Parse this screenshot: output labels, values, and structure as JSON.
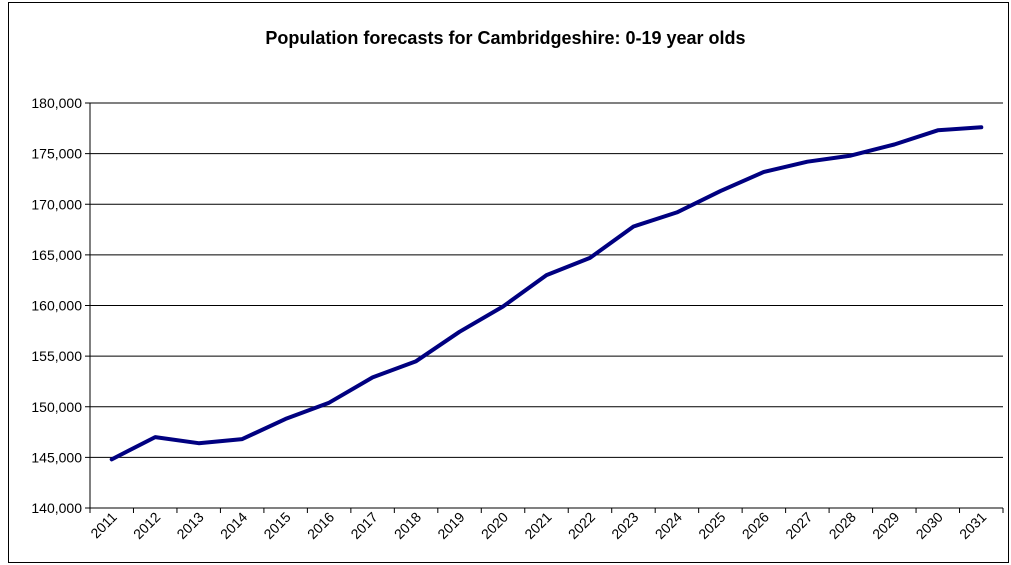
{
  "chart_data": {
    "type": "line",
    "title": "Population forecasts for Cambridgeshire: 0-19 year olds",
    "xlabel": "",
    "ylabel": "",
    "categories": [
      "2011",
      "2012",
      "2013",
      "2014",
      "2015",
      "2016",
      "2017",
      "2018",
      "2019",
      "2020",
      "2021",
      "2022",
      "2023",
      "2024",
      "2025",
      "2026",
      "2027",
      "2028",
      "2029",
      "2030",
      "2031"
    ],
    "series": [
      {
        "values": [
          144800,
          147000,
          146400,
          146800,
          148800,
          150400,
          152900,
          154500,
          157400,
          159900,
          163000,
          164700,
          167800,
          169200,
          171300,
          173200,
          174200,
          174800,
          175900,
          177300,
          177600
        ],
        "color": "#000080"
      }
    ],
    "ylim": [
      140000,
      180000
    ],
    "yticks": [
      140000,
      145000,
      150000,
      155000,
      160000,
      165000,
      170000,
      175000,
      180000
    ],
    "ytick_labels": [
      "140,000",
      "145,000",
      "150,000",
      "155,000",
      "160,000",
      "165,000",
      "170,000",
      "175,000",
      "180,000"
    ],
    "grid": "horizontal",
    "legend": "none"
  }
}
